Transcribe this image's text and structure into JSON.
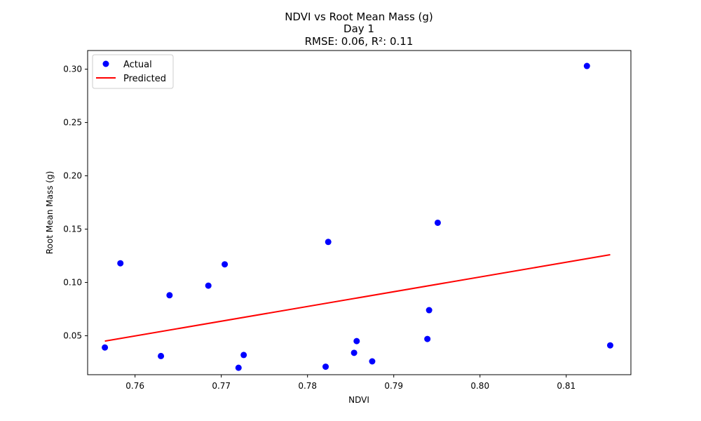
{
  "chart_data": {
    "type": "scatter",
    "title_lines": [
      "NDVI vs Root Mean Mass (g)",
      "Day 1",
      "RMSE: 0.06, R²: 0.11"
    ],
    "xlabel": "NDVI",
    "ylabel": "Root Mean Mass (g)",
    "xlim": [
      0.7545,
      0.8175
    ],
    "ylim": [
      0.0135,
      0.3175
    ],
    "x_ticks": [
      0.76,
      0.77,
      0.78,
      0.79,
      0.8,
      0.81
    ],
    "x_tick_labels": [
      "0.76",
      "0.77",
      "0.78",
      "0.79",
      "0.80",
      "0.81"
    ],
    "y_ticks": [
      0.05,
      0.1,
      0.15,
      0.2,
      0.25,
      0.3
    ],
    "y_tick_labels": [
      "0.05",
      "0.10",
      "0.15",
      "0.20",
      "0.25",
      "0.30"
    ],
    "grid": false,
    "legend_position": "top-left",
    "series": [
      {
        "name": "Actual",
        "kind": "scatter",
        "color": "#0000ff",
        "points": [
          [
            0.7565,
            0.039
          ],
          [
            0.7583,
            0.118
          ],
          [
            0.763,
            0.031
          ],
          [
            0.764,
            0.088
          ],
          [
            0.7685,
            0.097
          ],
          [
            0.7704,
            0.117
          ],
          [
            0.772,
            0.02
          ],
          [
            0.7726,
            0.032
          ],
          [
            0.7821,
            0.021
          ],
          [
            0.7824,
            0.138
          ],
          [
            0.7854,
            0.034
          ],
          [
            0.7857,
            0.045
          ],
          [
            0.7875,
            0.026
          ],
          [
            0.7939,
            0.047
          ],
          [
            0.7941,
            0.074
          ],
          [
            0.7951,
            0.156
          ],
          [
            0.8124,
            0.303
          ],
          [
            0.8151,
            0.041
          ]
        ]
      },
      {
        "name": "Predicted",
        "kind": "line",
        "color": "#ff0000",
        "points": [
          [
            0.7565,
            0.045
          ],
          [
            0.8151,
            0.126
          ]
        ]
      }
    ]
  }
}
